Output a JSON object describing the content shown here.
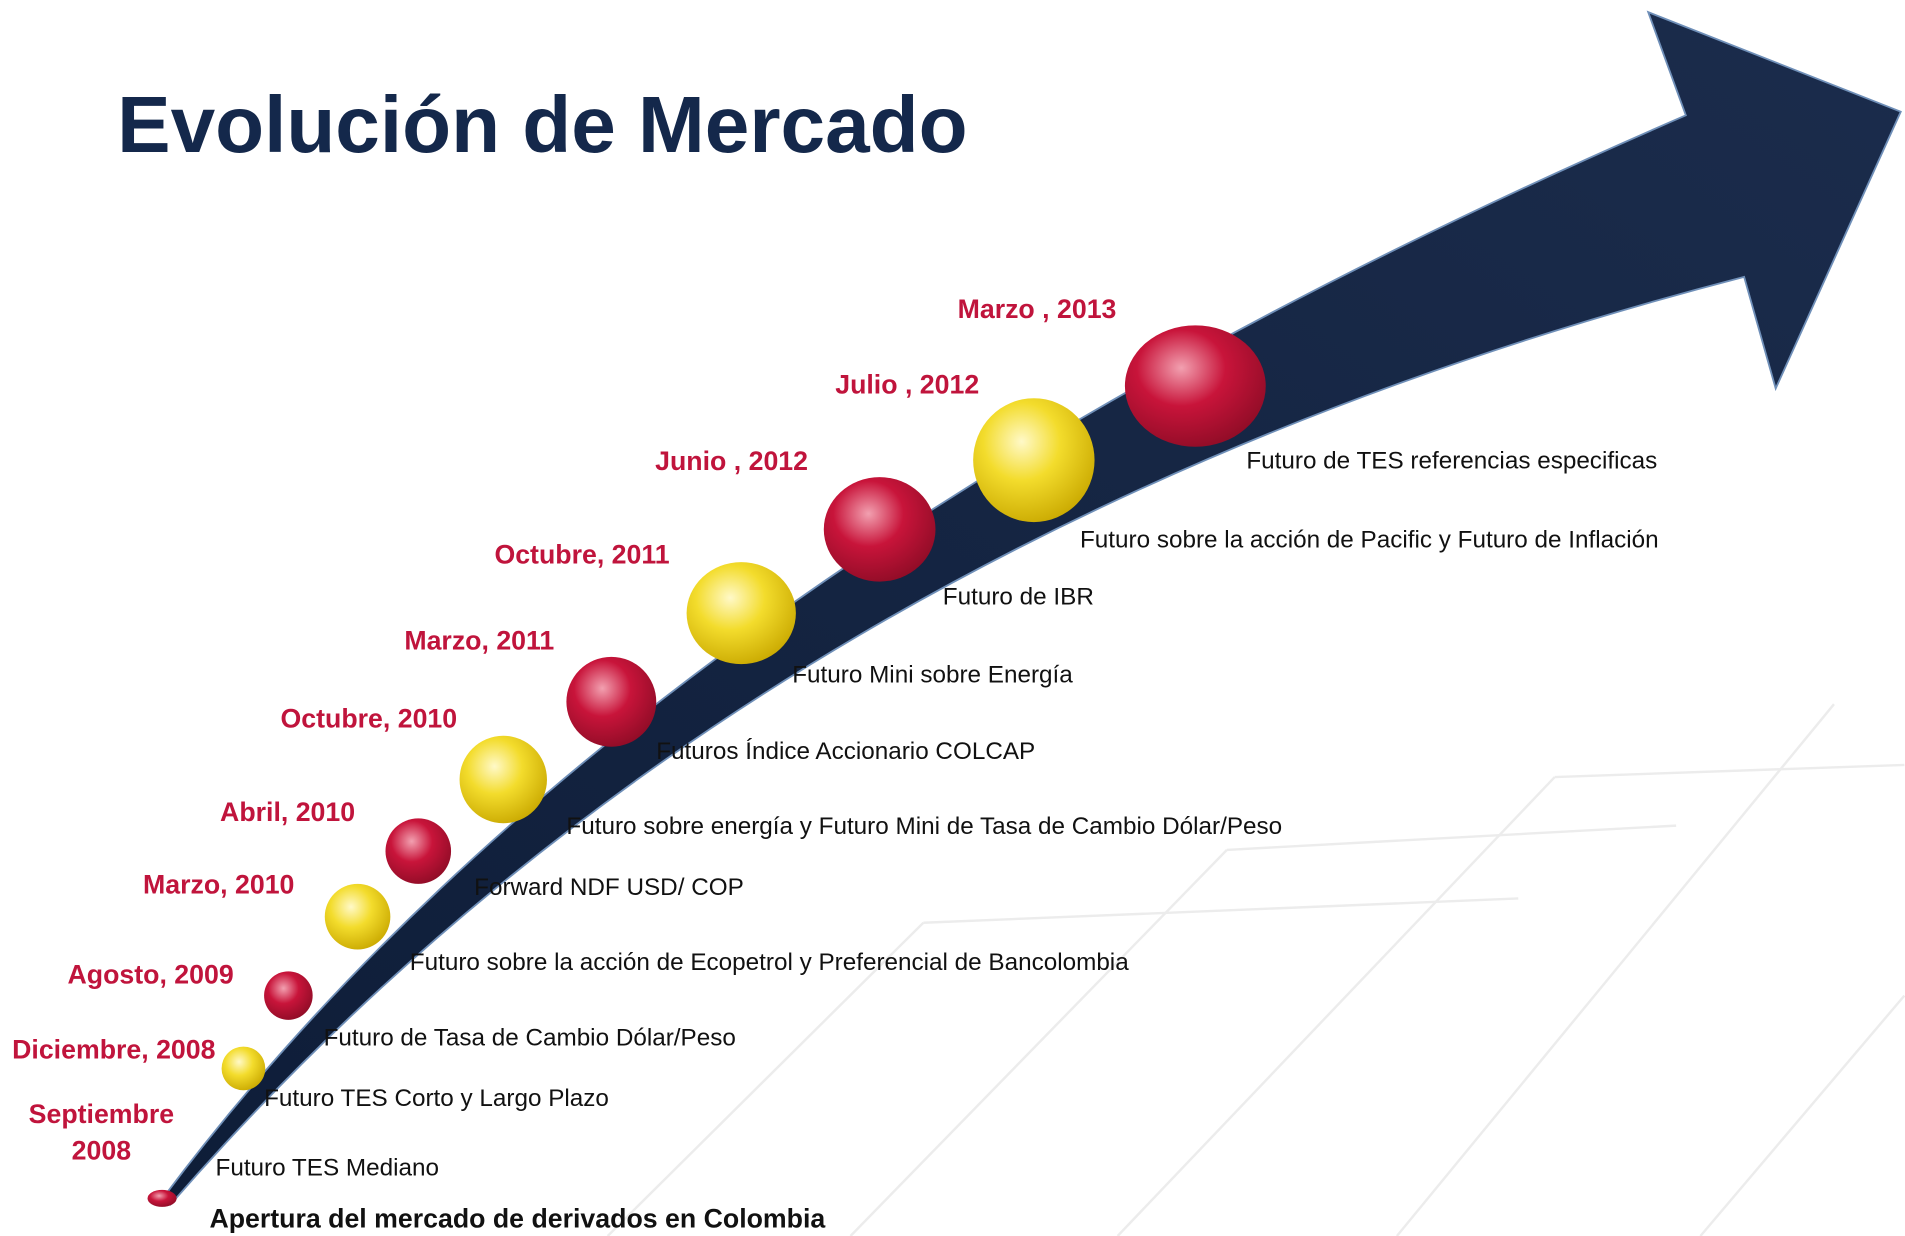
{
  "title": "Evolución de Mercado",
  "milestones": [
    {
      "date": "Septiembre\n2008",
      "description": "Futuro TES Mediano"
    },
    {
      "date": "Diciembre, 2008",
      "description": "Futuro TES Corto y Largo Plazo"
    },
    {
      "date": "Agosto, 2009",
      "description": "Futuro de Tasa de Cambio Dólar/Peso"
    },
    {
      "date": "Marzo, 2010",
      "description": "Futuro sobre la acción de Ecopetrol  y Preferencial de Bancolombia"
    },
    {
      "date": "Abril, 2010",
      "description": "Forward NDF USD/ COP"
    },
    {
      "date": "Octubre, 2010",
      "description": "Futuro sobre energía y Futuro Mini de Tasa de Cambio Dólar/Peso"
    },
    {
      "date": "Marzo, 2011",
      "description": "Futuros Índice Accionario COLCAP"
    },
    {
      "date": "Octubre, 2011",
      "description": "Futuro Mini sobre Energía"
    },
    {
      "date": "Junio , 2012",
      "description": "Futuro de IBR"
    },
    {
      "date": "Julio , 2012",
      "description": "Futuro sobre la acción de Pacific y Futuro de Inflación"
    },
    {
      "date": "Marzo , 2013",
      "description": "Futuro de TES referencias especificas"
    }
  ],
  "footer": "Apertura del mercado de derivados en Colombia"
}
